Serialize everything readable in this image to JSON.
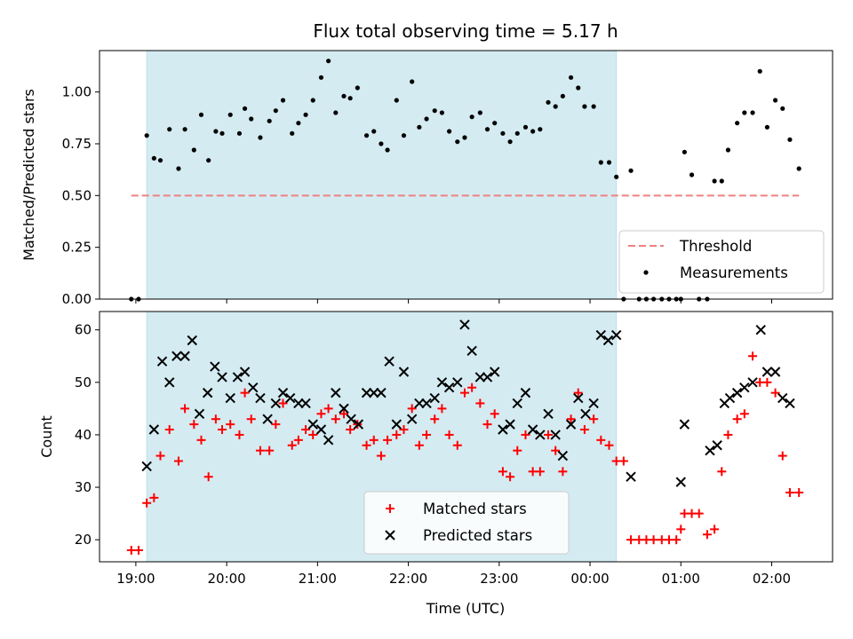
{
  "chart_data": {
    "title": "Flux total observing time = 5.17 h",
    "xlabel": "Time (UTC)",
    "x_ticks": [
      "19:00",
      "20:00",
      "21:00",
      "22:00",
      "23:00",
      "00:00",
      "01:00",
      "02:00"
    ],
    "xlim_hours": [
      18.6,
      26.67
    ],
    "shaded_span_hours": [
      19.12,
      24.29
    ],
    "colors": {
      "shade": "#d4ebf2",
      "threshold": "#f08080",
      "measurements": "#000000",
      "matched": "#ff0000",
      "predicted": "#000000"
    },
    "panels": [
      {
        "type": "scatter",
        "ylabel": "Matched/Predicted stars",
        "ylim": [
          0,
          1.2
        ],
        "y_ticks": [
          "0.00",
          "0.25",
          "0.50",
          "0.75",
          "1.00"
        ],
        "legend": "lower-right",
        "threshold": {
          "name": "Threshold",
          "value": 0.5,
          "x_range_hours": [
            18.95,
            26.3
          ]
        },
        "series": [
          {
            "name": "Measurements",
            "marker": "dot",
            "x_hours": [
              18.95,
              19.03,
              19.12,
              19.2,
              19.27,
              19.37,
              19.47,
              19.54,
              19.64,
              19.72,
              19.8,
              19.88,
              19.95,
              20.04,
              20.14,
              20.2,
              20.27,
              20.37,
              20.47,
              20.54,
              20.62,
              20.72,
              20.79,
              20.87,
              20.95,
              21.04,
              21.12,
              21.2,
              21.29,
              21.36,
              21.44,
              21.54,
              21.62,
              21.7,
              21.77,
              21.87,
              21.95,
              22.04,
              22.12,
              22.2,
              22.29,
              22.37,
              22.45,
              22.54,
              22.62,
              22.7,
              22.79,
              22.87,
              22.95,
              23.04,
              23.12,
              23.2,
              23.29,
              23.37,
              23.45,
              23.54,
              23.62,
              23.7,
              23.79,
              23.87,
              23.94,
              24.04,
              24.12,
              24.21,
              24.29,
              24.37,
              24.45,
              24.54,
              24.62,
              24.7,
              24.79,
              24.87,
              24.95,
              25.0,
              25.04,
              25.12,
              25.2,
              25.29,
              25.37,
              25.45,
              25.52,
              25.62,
              25.7,
              25.79,
              25.87,
              25.95,
              26.04,
              26.12,
              26.2,
              26.3
            ],
            "values": [
              0,
              0,
              0.79,
              0.68,
              0.67,
              0.82,
              0.63,
              0.82,
              0.72,
              0.89,
              0.67,
              0.81,
              0.8,
              0.89,
              0.8,
              0.92,
              0.87,
              0.78,
              0.86,
              0.91,
              0.96,
              0.8,
              0.85,
              0.89,
              0.96,
              1.07,
              1.15,
              0.9,
              0.98,
              0.97,
              1.02,
              0.79,
              0.81,
              0.75,
              0.72,
              0.96,
              0.79,
              1.05,
              0.83,
              0.87,
              0.91,
              0.9,
              0.81,
              0.76,
              0.78,
              0.88,
              0.9,
              0.82,
              0.85,
              0.8,
              0.76,
              0.8,
              0.83,
              0.81,
              0.82,
              0.95,
              0.93,
              0.98,
              1.07,
              1.02,
              0.93,
              0.93,
              0.66,
              0.66,
              0.59,
              0,
              0.62,
              0,
              0,
              0,
              0,
              0,
              0,
              0,
              0.71,
              0.6,
              0,
              0,
              0.57,
              0.57,
              0.72,
              0.85,
              0.9,
              0.9,
              1.1,
              0.83,
              0.96,
              0.92,
              0.77,
              0.63
            ]
          }
        ]
      },
      {
        "type": "scatter",
        "ylabel": "Count",
        "ylim": [
          15.8,
          63.5
        ],
        "y_ticks": [
          "20",
          "30",
          "40",
          "50",
          "60"
        ],
        "legend": "bottom-center",
        "series": [
          {
            "name": "Matched stars",
            "marker": "plus",
            "x_hours": [
              18.95,
              19.03,
              19.12,
              19.2,
              19.27,
              19.37,
              19.47,
              19.54,
              19.64,
              19.72,
              19.8,
              19.88,
              19.95,
              20.04,
              20.14,
              20.2,
              20.27,
              20.37,
              20.47,
              20.54,
              20.62,
              20.72,
              20.79,
              20.87,
              20.95,
              21.04,
              21.12,
              21.2,
              21.29,
              21.36,
              21.44,
              21.54,
              21.62,
              21.7,
              21.77,
              21.87,
              21.95,
              22.04,
              22.12,
              22.2,
              22.29,
              22.37,
              22.45,
              22.54,
              22.62,
              22.7,
              22.79,
              22.87,
              22.95,
              23.04,
              23.12,
              23.2,
              23.29,
              23.37,
              23.45,
              23.54,
              23.62,
              23.7,
              23.79,
              23.87,
              23.94,
              24.04,
              24.12,
              24.21,
              24.29,
              24.37,
              24.45,
              24.54,
              24.62,
              24.7,
              24.79,
              24.87,
              24.95,
              25.0,
              25.04,
              25.12,
              25.2,
              25.29,
              25.37,
              25.45,
              25.52,
              25.62,
              25.7,
              25.79,
              25.87,
              25.95,
              26.04,
              26.12,
              26.2,
              26.3
            ],
            "values": [
              18,
              18,
              27,
              28,
              36,
              41,
              35,
              45,
              42,
              39,
              32,
              43,
              41,
              42,
              40,
              48,
              43,
              37,
              37,
              42,
              46,
              38,
              39,
              41,
              40,
              44,
              45,
              43,
              44,
              41,
              42,
              38,
              39,
              36,
              39,
              40,
              41,
              45,
              38,
              40,
              43,
              45,
              40,
              38,
              48,
              49,
              46,
              42,
              44,
              33,
              32,
              37,
              40,
              33,
              33,
              40,
              37,
              33,
              43,
              48,
              41,
              43,
              39,
              38,
              35,
              35,
              20,
              20,
              20,
              20,
              20,
              20,
              20,
              22,
              25,
              25,
              25,
              21,
              22,
              33,
              40,
              43,
              44,
              55,
              50,
              50,
              48,
              36,
              29,
              29
            ]
          },
          {
            "name": "Predicted stars",
            "marker": "x",
            "x_hours": [
              19.12,
              19.2,
              19.29,
              19.37,
              19.45,
              19.54,
              19.62,
              19.7,
              19.79,
              19.87,
              19.95,
              20.04,
              20.12,
              20.2,
              20.29,
              20.37,
              20.45,
              20.54,
              20.62,
              20.7,
              20.79,
              20.87,
              20.95,
              21.04,
              21.12,
              21.2,
              21.29,
              21.37,
              21.45,
              21.54,
              21.62,
              21.7,
              21.79,
              21.87,
              21.95,
              22.04,
              22.12,
              22.2,
              22.29,
              22.37,
              22.45,
              22.54,
              22.62,
              22.7,
              22.79,
              22.87,
              22.95,
              23.04,
              23.12,
              23.2,
              23.29,
              23.37,
              23.45,
              23.54,
              23.62,
              23.7,
              23.79,
              23.87,
              23.95,
              24.04,
              24.12,
              24.2,
              24.29,
              24.45,
              25.0,
              25.04,
              25.32,
              25.4,
              25.48,
              25.54,
              25.62,
              25.7,
              25.79,
              25.88,
              25.95,
              26.04,
              26.12,
              26.2
            ],
            "values": [
              34,
              41,
              54,
              50,
              55,
              55,
              58,
              44,
              48,
              53,
              51,
              47,
              51,
              52,
              49,
              47,
              43,
              46,
              48,
              47,
              46,
              46,
              42,
              41,
              39,
              48,
              45,
              43,
              42,
              48,
              48,
              48,
              54,
              42,
              52,
              43,
              46,
              46,
              47,
              50,
              49,
              50,
              61,
              56,
              51,
              51,
              52,
              41,
              42,
              46,
              48,
              41,
              40,
              44,
              40,
              36,
              42,
              47,
              44,
              46,
              59,
              58,
              59,
              32,
              31,
              42,
              37,
              38,
              46,
              47,
              48,
              49,
              50,
              60,
              52,
              52,
              47,
              46
            ]
          }
        ]
      }
    ]
  }
}
